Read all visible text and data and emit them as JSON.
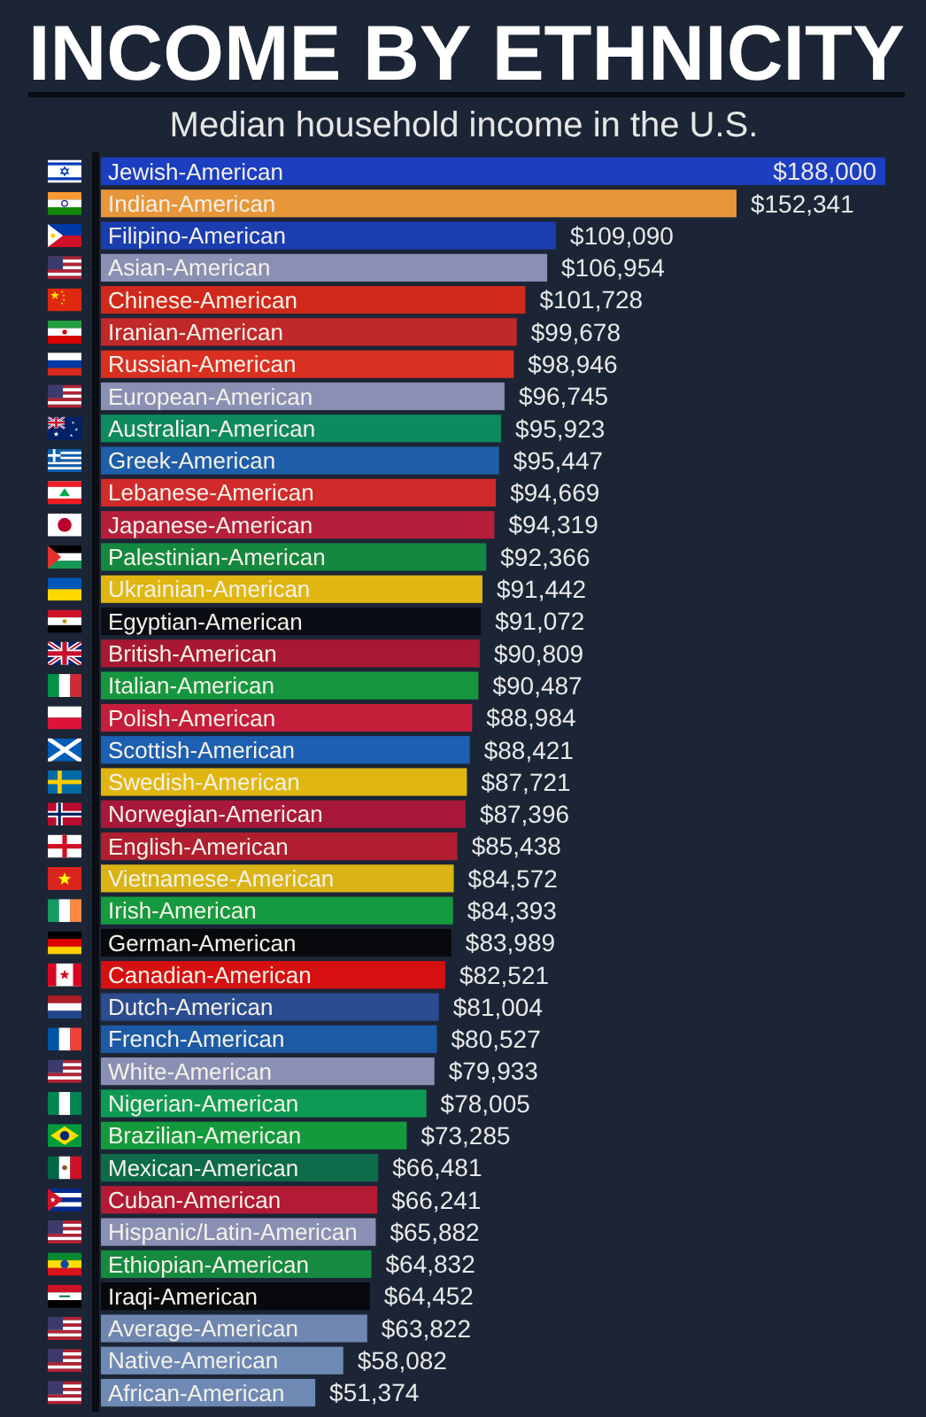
{
  "chart_data": {
    "type": "bar",
    "orientation": "horizontal",
    "title": "INCOME BY ETHNICITY",
    "subtitle": "Median household income in the U.S.",
    "categories": [
      "Jewish-American",
      "Indian-American",
      "Filipino-American",
      "Asian-American",
      "Chinese-American",
      "Iranian-American",
      "Russian-American",
      "European-American",
      "Australian-American",
      "Greek-American",
      "Lebanese-American",
      "Japanese-American",
      "Palestinian-American",
      "Ukrainian-American",
      "Egyptian-American",
      "British-American",
      "Italian-American",
      "Polish-American",
      "Scottish-American",
      "Swedish-American",
      "Norwegian-American",
      "English-American",
      "Vietnamese-American",
      "Irish-American",
      "German-American",
      "Canadian-American",
      "Dutch-American",
      "French-American",
      "White-American",
      "Nigerian-American",
      "Brazilian-American",
      "Mexican-American",
      "Cuban-American",
      "Hispanic/Latin-American",
      "Ethiopian-American",
      "Iraqi-American",
      "Average-American",
      "Native-American",
      "African-American"
    ],
    "values": [
      188000,
      152341,
      109090,
      106954,
      101728,
      99678,
      98946,
      96745,
      95923,
      95447,
      94669,
      94319,
      92366,
      91442,
      91072,
      90809,
      90487,
      88984,
      88421,
      87721,
      87396,
      85438,
      84572,
      84393,
      83989,
      82521,
      81004,
      80527,
      79933,
      78005,
      73285,
      66481,
      66241,
      65882,
      64832,
      64452,
      63822,
      58082,
      51374
    ],
    "value_labels": [
      "$188,000",
      "$152,341",
      "$109,090",
      "$106,954",
      "$101,728",
      "$99,678",
      "$98,946",
      "$96,745",
      "$95,923",
      "$95,447",
      "$94,669",
      "$94,319",
      "$92,366",
      "$91,442",
      "$91,072",
      "$90,809",
      "$90,487",
      "$88,984",
      "$88,421",
      "$87,721",
      "$87,396",
      "$85,438",
      "$84,572",
      "$84,393",
      "$83,989",
      "$82,521",
      "$81,004",
      "$80,527",
      "$79,933",
      "$78,005",
      "$73,285",
      "$66,481",
      "$66,241",
      "$65,882",
      "$64,832",
      "$64,452",
      "$63,822",
      "$58,082",
      "$51,374"
    ],
    "colors": [
      "#1c3ec0",
      "#e8963a",
      "#1a3db0",
      "#8a90b4",
      "#d0291c",
      "#c0282a",
      "#d93021",
      "#8a90b4",
      "#0e8a5f",
      "#1f5ea8",
      "#d02a2a",
      "#b51f3c",
      "#14883e",
      "#e0b711",
      "#0b0d14",
      "#a81832",
      "#16973f",
      "#c41e3a",
      "#1d5fb0",
      "#e0b712",
      "#a8183a",
      "#b01e30",
      "#d9b414",
      "#169a3f",
      "#08090d",
      "#d61010",
      "#2b4c8f",
      "#1d5aa5",
      "#8a90b4",
      "#0e9a55",
      "#149a3c",
      "#0d6b4a",
      "#b31a35",
      "#8a90b4",
      "#168a3f",
      "#08090d",
      "#6e86b0",
      "#6f89b5",
      "#6f89b5"
    ]
  }
}
